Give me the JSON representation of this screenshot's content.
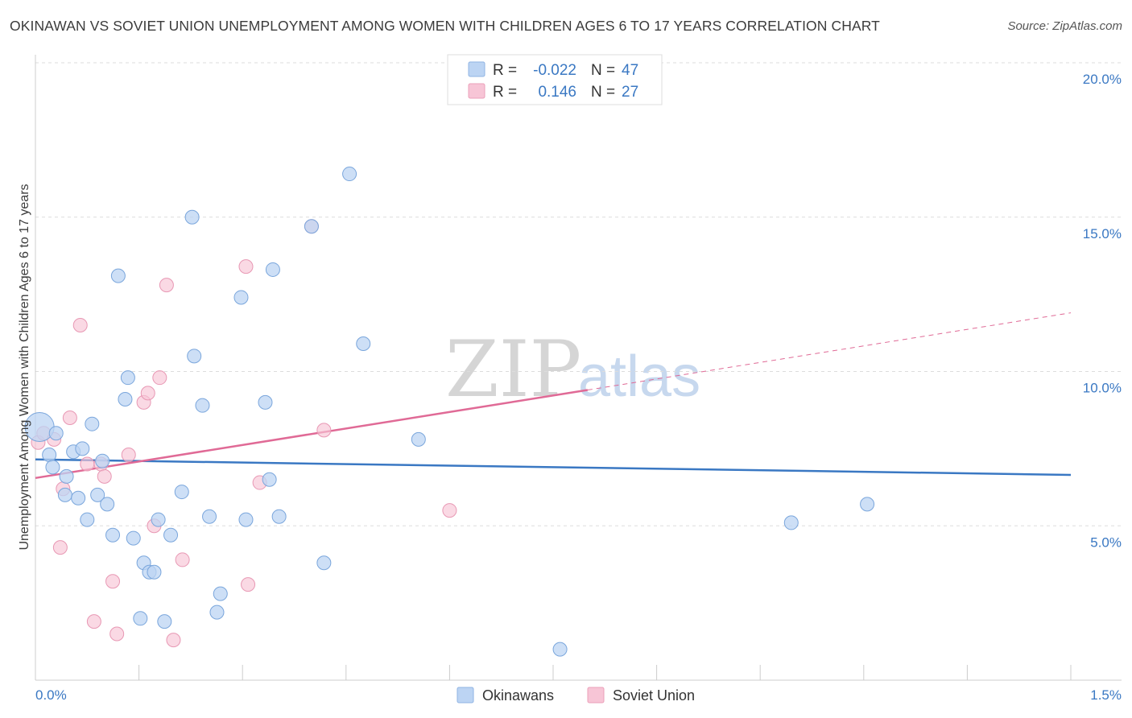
{
  "title": "OKINAWAN VS SOVIET UNION UNEMPLOYMENT AMONG WOMEN WITH CHILDREN AGES 6 TO 17 YEARS CORRELATION CHART",
  "source": "Source: ZipAtlas.com",
  "watermark": {
    "zip": "ZIP",
    "atlas": "atlas"
  },
  "colors": {
    "blue": "#3a78c3",
    "blue_fill": "#bcd4f3",
    "pink": "#e06a96",
    "pink_fill": "#f7c5d6"
  },
  "legend": {
    "rows": [
      {
        "r_label": "R =",
        "r_value": "-0.022",
        "n_label": "N =",
        "n_value": "47"
      },
      {
        "r_label": "R =",
        "r_value": "0.146",
        "n_label": "N =",
        "n_value": "27"
      }
    ]
  },
  "chart_data": {
    "type": "scatter",
    "title": "OKINAWAN VS SOVIET UNION UNEMPLOYMENT AMONG WOMEN WITH CHILDREN AGES 6 TO 17 YEARS CORRELATION CHART",
    "xlabel": "",
    "ylabel": "Unemployment Among Women with Children Ages 6 to 17 years",
    "xlim": [
      0,
      1.5
    ],
    "ylim": [
      0,
      20
    ],
    "x_tick_labels": [
      "0.0%",
      "1.5%"
    ],
    "y_ticks": [
      5,
      10,
      15,
      20
    ],
    "y_tick_labels": [
      "5.0%",
      "10.0%",
      "15.0%",
      "20.0%"
    ],
    "series": [
      {
        "name": "Okinawans",
        "points": [
          [
            0.006,
            8.2
          ],
          [
            0.02,
            7.3
          ],
          [
            0.025,
            6.9
          ],
          [
            0.03,
            8.0
          ],
          [
            0.045,
            6.6
          ],
          [
            0.043,
            6.0
          ],
          [
            0.055,
            7.4
          ],
          [
            0.062,
            5.9
          ],
          [
            0.068,
            7.5
          ],
          [
            0.075,
            5.2
          ],
          [
            0.082,
            8.3
          ],
          [
            0.09,
            6.0
          ],
          [
            0.097,
            7.1
          ],
          [
            0.104,
            5.7
          ],
          [
            0.112,
            4.7
          ],
          [
            0.12,
            13.1
          ],
          [
            0.13,
            9.1
          ],
          [
            0.134,
            9.8
          ],
          [
            0.142,
            4.6
          ],
          [
            0.152,
            2.0
          ],
          [
            0.157,
            3.8
          ],
          [
            0.165,
            3.5
          ],
          [
            0.172,
            3.5
          ],
          [
            0.178,
            5.2
          ],
          [
            0.187,
            1.9
          ],
          [
            0.196,
            4.7
          ],
          [
            0.212,
            6.1
          ],
          [
            0.227,
            15.0
          ],
          [
            0.23,
            10.5
          ],
          [
            0.242,
            8.9
          ],
          [
            0.252,
            5.3
          ],
          [
            0.263,
            2.2
          ],
          [
            0.268,
            2.8
          ],
          [
            0.298,
            12.4
          ],
          [
            0.305,
            5.2
          ],
          [
            0.333,
            9.0
          ],
          [
            0.339,
            6.5
          ],
          [
            0.344,
            13.3
          ],
          [
            0.353,
            5.3
          ],
          [
            0.4,
            14.7
          ],
          [
            0.418,
            3.8
          ],
          [
            0.455,
            16.4
          ],
          [
            0.475,
            10.9
          ],
          [
            0.555,
            7.8
          ],
          [
            0.76,
            1.0
          ],
          [
            1.095,
            5.1
          ],
          [
            1.205,
            5.7
          ]
        ]
      },
      {
        "name": "Soviet Union",
        "points": [
          [
            0.004,
            7.7
          ],
          [
            0.012,
            8.0
          ],
          [
            0.027,
            7.8
          ],
          [
            0.036,
            4.3
          ],
          [
            0.04,
            6.2
          ],
          [
            0.05,
            8.5
          ],
          [
            0.065,
            11.5
          ],
          [
            0.075,
            7.0
          ],
          [
            0.085,
            1.9
          ],
          [
            0.095,
            7.0
          ],
          [
            0.1,
            6.6
          ],
          [
            0.112,
            3.2
          ],
          [
            0.118,
            1.5
          ],
          [
            0.135,
            7.3
          ],
          [
            0.157,
            9.0
          ],
          [
            0.163,
            9.3
          ],
          [
            0.172,
            5.0
          ],
          [
            0.18,
            9.8
          ],
          [
            0.19,
            12.8
          ],
          [
            0.2,
            1.3
          ],
          [
            0.213,
            3.9
          ],
          [
            0.305,
            13.4
          ],
          [
            0.308,
            3.1
          ],
          [
            0.325,
            6.4
          ],
          [
            0.4,
            14.7
          ],
          [
            0.418,
            8.1
          ],
          [
            0.6,
            5.5
          ]
        ]
      }
    ],
    "trend_lines": [
      {
        "series": "Okinawans",
        "x0": 0.0,
        "y0": 7.15,
        "x1": 1.5,
        "y1": 6.65,
        "style": "solid"
      },
      {
        "series": "Soviet Union",
        "x0": 0.0,
        "y0": 6.55,
        "x1": 0.8,
        "y1": 9.4,
        "style": "solid"
      },
      {
        "series": "Soviet Union",
        "x0": 0.8,
        "y0": 9.4,
        "x1": 1.5,
        "y1": 11.9,
        "style": "dashed"
      }
    ],
    "legend_entries": [
      "Okinawans",
      "Soviet Union"
    ]
  }
}
